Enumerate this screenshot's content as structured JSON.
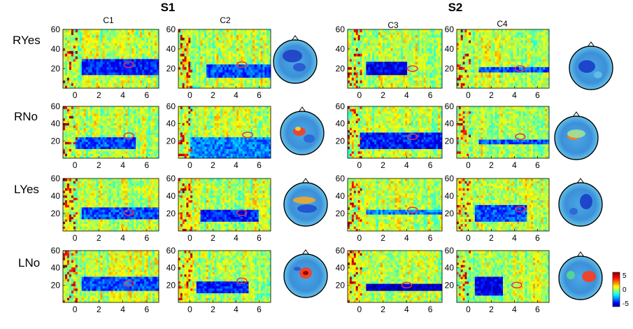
{
  "chart_data": {
    "type": "heatmap",
    "subjects": [
      "S1",
      "S2"
    ],
    "columns": [
      "C1",
      "C2",
      "C3",
      "C4"
    ],
    "rows": [
      "RYes",
      "RNo",
      "LYes",
      "LNo"
    ],
    "x_ticks": [
      0,
      2,
      4,
      6
    ],
    "xlim": [
      -1,
      7
    ],
    "y_ticks": [
      20,
      40,
      60
    ],
    "ylim": [
      0,
      60
    ],
    "colorbar": {
      "ticks": [
        5,
        0,
        -5
      ],
      "range": [
        -5,
        5
      ]
    },
    "colormap": [
      "#00008f",
      "#0000ff",
      "#0080ff",
      "#00ffff",
      "#80ff80",
      "#ffff00",
      "#ff8000",
      "#ff0000",
      "#800000"
    ],
    "panels": [
      {
        "row": "RYes",
        "col": "C1",
        "band": {
          "x": [
            0.5,
            7
          ],
          "y": [
            13,
            30
          ],
          "v": -3.5
        },
        "marker": {
          "x": 4.5,
          "y": 24
        }
      },
      {
        "row": "RYes",
        "col": "C2",
        "band": {
          "x": [
            1.5,
            7
          ],
          "y": [
            12,
            25
          ],
          "v": -3
        },
        "marker": {
          "x": 4.5,
          "y": 24
        }
      },
      {
        "row": "RYes",
        "col": "C3",
        "band": {
          "x": [
            0.5,
            4
          ],
          "y": [
            14,
            28
          ],
          "v": -4
        },
        "marker": {
          "x": 4.5,
          "y": 20
        }
      },
      {
        "row": "RYes",
        "col": "C4",
        "band": {
          "x": [
            1,
            7
          ],
          "y": [
            16,
            23
          ],
          "v": -3
        },
        "marker": {
          "x": 4.5,
          "y": 20
        }
      },
      {
        "row": "RNo",
        "col": "C1",
        "band": {
          "x": [
            0,
            5
          ],
          "y": [
            10,
            24
          ],
          "v": -3
        },
        "marker": {
          "x": 4.5,
          "y": 26
        }
      },
      {
        "row": "RNo",
        "col": "C2",
        "band": {
          "x": [
            0,
            7
          ],
          "y": [
            0,
            24
          ],
          "v": -2.5
        },
        "marker": {
          "x": 5,
          "y": 27
        }
      },
      {
        "row": "RNo",
        "col": "C3",
        "band": {
          "x": [
            0,
            7
          ],
          "y": [
            12,
            30
          ],
          "v": -3.5
        },
        "marker": {
          "x": 4.5,
          "y": 25
        }
      },
      {
        "row": "RNo",
        "col": "C4",
        "band": {
          "x": [
            1,
            7
          ],
          "y": [
            16,
            23
          ],
          "v": -3
        },
        "marker": {
          "x": 4.5,
          "y": 25
        }
      },
      {
        "row": "LYes",
        "col": "C1",
        "band": {
          "x": [
            0.5,
            7
          ],
          "y": [
            14,
            27
          ],
          "v": -3
        },
        "marker": {
          "x": 4.5,
          "y": 21
        }
      },
      {
        "row": "LYes",
        "col": "C2",
        "band": {
          "x": [
            1,
            6
          ],
          "y": [
            11,
            24
          ],
          "v": -3.5
        },
        "marker": {
          "x": 4.5,
          "y": 21
        }
      },
      {
        "row": "LYes",
        "col": "C3",
        "band": {
          "x": [
            0.5,
            7
          ],
          "y": [
            18,
            24
          ],
          "v": -2.5
        },
        "marker": {
          "x": 4.5,
          "y": 24
        }
      },
      {
        "row": "LYes",
        "col": "C4",
        "band": {
          "x": [
            0.5,
            5
          ],
          "y": [
            10,
            30
          ],
          "v": -3
        },
        "marker": {
          "x": 4.5,
          "y": 25
        }
      },
      {
        "row": "LNo",
        "col": "C1",
        "band": {
          "x": [
            0.5,
            7
          ],
          "y": [
            15,
            30
          ],
          "v": -3
        },
        "marker": {
          "x": 4.5,
          "y": 22
        }
      },
      {
        "row": "LNo",
        "col": "C2",
        "band": {
          "x": [
            0.5,
            5
          ],
          "y": [
            12,
            25
          ],
          "v": -3.5
        },
        "marker": {
          "x": 4.5,
          "y": 25
        }
      },
      {
        "row": "LNo",
        "col": "C3",
        "band": {
          "x": [
            0.5,
            7
          ],
          "y": [
            14,
            22
          ],
          "v": -4.5
        },
        "marker": {
          "x": 4,
          "y": 20
        }
      },
      {
        "row": "LNo",
        "col": "C4",
        "band": {
          "x": [
            0.5,
            3
          ],
          "y": [
            8,
            30
          ],
          "v": -4
        },
        "marker": {
          "x": 4.2,
          "y": 20
        }
      }
    ]
  }
}
